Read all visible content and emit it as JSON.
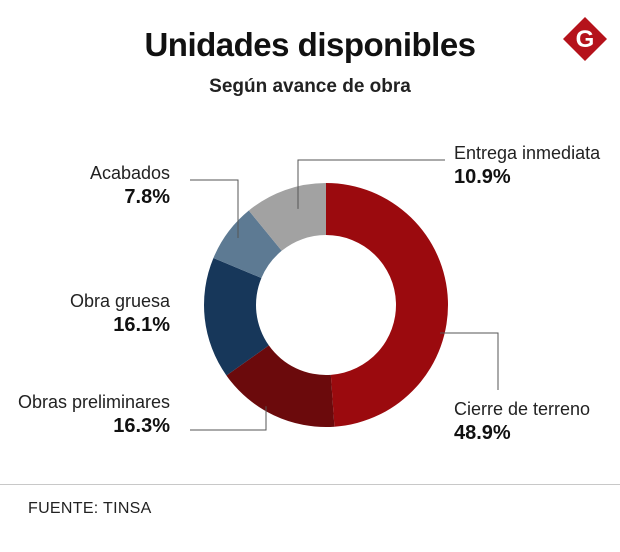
{
  "header": {
    "title": "Unidades disponibles",
    "subtitle": "Según avance de obra",
    "logo_letter": "G",
    "logo_color": "#b5121b"
  },
  "chart_data": {
    "type": "pie",
    "variant": "donut",
    "title": "Unidades disponibles",
    "subtitle": "Según avance de obra",
    "start": "top",
    "direction": "clockwise",
    "slices": [
      {
        "label": "Cierre de terreno",
        "value": 48.9,
        "display": "48.9%",
        "color": "#9b0a0e"
      },
      {
        "label": "Obras preliminares",
        "value": 16.3,
        "display": "16.3%",
        "color": "#6b0a0c"
      },
      {
        "label": "Obra gruesa",
        "value": 16.1,
        "display": "16.1%",
        "color": "#17375a"
      },
      {
        "label": "Acabados",
        "value": 7.8,
        "display": "7.8%",
        "color": "#5d7a93"
      },
      {
        "label": "Entrega inmediata",
        "value": 10.9,
        "display": "10.9%",
        "color": "#a2a2a2"
      }
    ]
  },
  "footer": {
    "source": "FUENTE: TINSA"
  }
}
